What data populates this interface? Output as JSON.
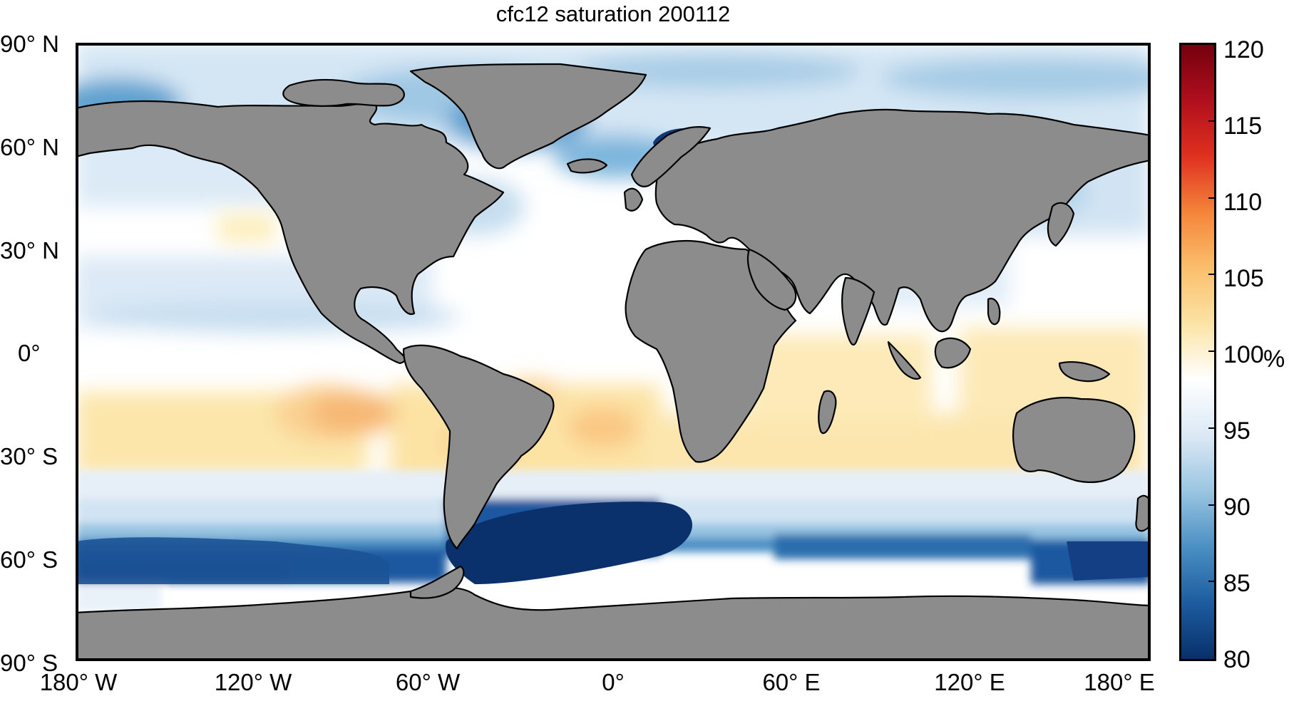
{
  "title": "cfc12 saturation 200112",
  "lat_labels": [
    {
      "text": "90° N",
      "lat": 90
    },
    {
      "text": "60° N",
      "lat": 60
    },
    {
      "text": "30° N",
      "lat": 30
    },
    {
      "text": "0°",
      "lat": 0
    },
    {
      "text": "30° S",
      "lat": -30
    },
    {
      "text": "60° S",
      "lat": -60
    },
    {
      "text": "90° S",
      "lat": -90
    }
  ],
  "lon_labels": [
    {
      "text": "180° W",
      "lon": -180
    },
    {
      "text": "120° W",
      "lon": -120
    },
    {
      "text": "60° W",
      "lon": -60
    },
    {
      "text": "0°",
      "lon": 0
    },
    {
      "text": "60° E",
      "lon": 60
    },
    {
      "text": "120° E",
      "lon": 120
    },
    {
      "text": "180° E",
      "lon": 180
    }
  ],
  "colorbar": {
    "min": 80,
    "max": 120,
    "ticks": [
      "80",
      "85",
      "90",
      "95",
      "100",
      "105",
      "110",
      "115",
      "120"
    ],
    "unit": "%",
    "colors": [
      "#08306b",
      "#1c5c9f",
      "#4a8fc4",
      "#9ac5e1",
      "#dbe9f6",
      "#ffffff",
      "#fbe4a6",
      "#fbbf6c",
      "#f4853a",
      "#e0311f",
      "#b00f1e",
      "#75000d"
    ]
  },
  "colors": {
    "land": "#8c8c8c",
    "coast": "#000000",
    "ocean_default": "#ffffff"
  }
}
